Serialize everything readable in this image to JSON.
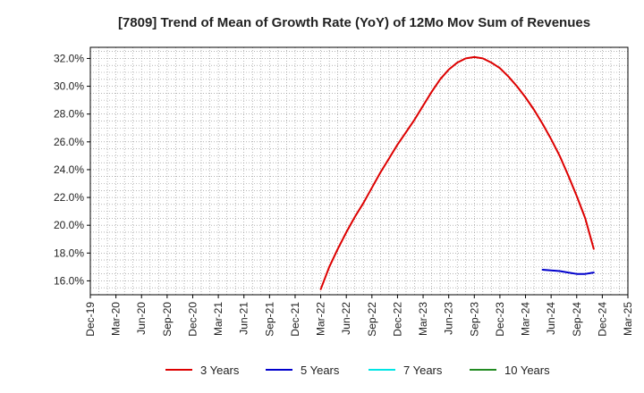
{
  "chart_data": {
    "type": "line",
    "title": "[7809]  Trend of Mean of Growth Rate (YoY) of 12Mo Mov Sum of Revenues",
    "xlabel": "",
    "ylabel": "",
    "ylim": [
      15.0,
      32.8
    ],
    "y_ticks": [
      16.0,
      18.0,
      20.0,
      22.0,
      24.0,
      26.0,
      28.0,
      30.0,
      32.0
    ],
    "y_tick_labels": [
      "16.0%",
      "18.0%",
      "20.0%",
      "22.0%",
      "24.0%",
      "26.0%",
      "28.0%",
      "30.0%",
      "32.0%"
    ],
    "x_tick_labels": [
      "Dec-19",
      "Mar-20",
      "Jun-20",
      "Sep-20",
      "Dec-20",
      "Mar-21",
      "Jun-21",
      "Sep-21",
      "Dec-21",
      "Mar-22",
      "Jun-22",
      "Sep-22",
      "Dec-22",
      "Mar-23",
      "Jun-23",
      "Sep-23",
      "Dec-23",
      "Mar-24",
      "Jun-24",
      "Sep-24",
      "Dec-24",
      "Mar-25"
    ],
    "x_range_months": [
      0,
      63
    ],
    "grid": true,
    "legend_position": "bottom",
    "series": [
      {
        "name": "3 Years",
        "color": "#dd0000",
        "points": [
          [
            27,
            15.4
          ],
          [
            28,
            17.0
          ],
          [
            29,
            18.3
          ],
          [
            30,
            19.5
          ],
          [
            31,
            20.6
          ],
          [
            32,
            21.6
          ],
          [
            33,
            22.7
          ],
          [
            34,
            23.8
          ],
          [
            35,
            24.8
          ],
          [
            36,
            25.8
          ],
          [
            37,
            26.7
          ],
          [
            38,
            27.6
          ],
          [
            39,
            28.6
          ],
          [
            40,
            29.6
          ],
          [
            41,
            30.5
          ],
          [
            42,
            31.2
          ],
          [
            43,
            31.7
          ],
          [
            44,
            32.0
          ],
          [
            45,
            32.1
          ],
          [
            46,
            32.0
          ],
          [
            47,
            31.7
          ],
          [
            48,
            31.3
          ],
          [
            49,
            30.7
          ],
          [
            50,
            30.0
          ],
          [
            51,
            29.2
          ],
          [
            52,
            28.3
          ],
          [
            53,
            27.3
          ],
          [
            54,
            26.2
          ],
          [
            55,
            25.0
          ],
          [
            56,
            23.6
          ],
          [
            57,
            22.1
          ],
          [
            58,
            20.5
          ],
          [
            59,
            18.3
          ]
        ]
      },
      {
        "name": "5 Years",
        "color": "#0000cc",
        "points": [
          [
            53,
            16.8
          ],
          [
            54,
            16.75
          ],
          [
            55,
            16.7
          ],
          [
            56,
            16.6
          ],
          [
            57,
            16.5
          ],
          [
            58,
            16.5
          ],
          [
            59,
            16.6
          ]
        ]
      },
      {
        "name": "7 Years",
        "color": "#00e5e5",
        "points": []
      },
      {
        "name": "10 Years",
        "color": "#228b22",
        "points": []
      }
    ]
  }
}
